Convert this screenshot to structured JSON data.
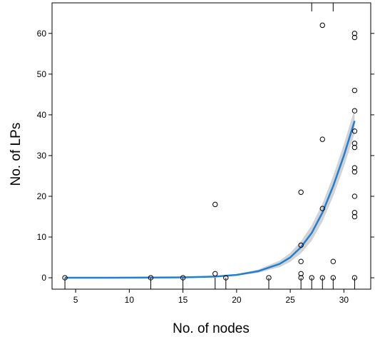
{
  "chart_data": {
    "type": "scatter",
    "title": "",
    "xlabel": "No. of nodes",
    "ylabel": "No. of LPs",
    "xlim": [
      2.8,
      32.5
    ],
    "ylim": [
      -2.8,
      67.5
    ],
    "xticks": [
      5,
      10,
      15,
      20,
      25,
      30
    ],
    "yticks": [
      0,
      10,
      20,
      30,
      40,
      50,
      60
    ],
    "top_rug_x": [
      27,
      29
    ],
    "bottom_rug_x": [
      4,
      12,
      15,
      18,
      19,
      23,
      26,
      27,
      28,
      29,
      31
    ],
    "points": [
      {
        "x": 4,
        "y": 0
      },
      {
        "x": 12,
        "y": 0
      },
      {
        "x": 15,
        "y": 0
      },
      {
        "x": 18,
        "y": 18
      },
      {
        "x": 18,
        "y": 1
      },
      {
        "x": 19,
        "y": 0
      },
      {
        "x": 23,
        "y": 0
      },
      {
        "x": 26,
        "y": 21
      },
      {
        "x": 26,
        "y": 8
      },
      {
        "x": 26,
        "y": 4
      },
      {
        "x": 26,
        "y": 1
      },
      {
        "x": 26,
        "y": 0
      },
      {
        "x": 27,
        "y": 0
      },
      {
        "x": 28,
        "y": 62
      },
      {
        "x": 28,
        "y": 34
      },
      {
        "x": 28,
        "y": 17
      },
      {
        "x": 28,
        "y": 0
      },
      {
        "x": 29,
        "y": 4
      },
      {
        "x": 29,
        "y": 0
      },
      {
        "x": 31,
        "y": 60
      },
      {
        "x": 31,
        "y": 59
      },
      {
        "x": 31,
        "y": 46
      },
      {
        "x": 31,
        "y": 41
      },
      {
        "x": 31,
        "y": 36
      },
      {
        "x": 31,
        "y": 33
      },
      {
        "x": 31,
        "y": 32
      },
      {
        "x": 31,
        "y": 27
      },
      {
        "x": 31,
        "y": 26
      },
      {
        "x": 31,
        "y": 20
      },
      {
        "x": 31,
        "y": 16
      },
      {
        "x": 31,
        "y": 15
      },
      {
        "x": 31,
        "y": 0
      }
    ],
    "fit_curve": {
      "x": [
        4,
        8,
        12,
        15,
        18,
        20,
        22,
        24,
        25,
        26,
        27,
        28,
        29,
        30,
        31
      ],
      "y": [
        0,
        0,
        0.05,
        0.1,
        0.3,
        0.7,
        1.6,
        3.4,
        5.0,
        7.5,
        11,
        16,
        22.5,
        30,
        38.5
      ],
      "band": [
        0,
        0,
        0,
        0,
        0.1,
        0.2,
        0.4,
        0.8,
        1.1,
        1.5,
        1.9,
        2.2,
        2.5,
        2.8,
        3.0
      ],
      "color": "#1f7fd6",
      "band_color": "#c8c8c8"
    },
    "grid": false,
    "legend": "none"
  }
}
